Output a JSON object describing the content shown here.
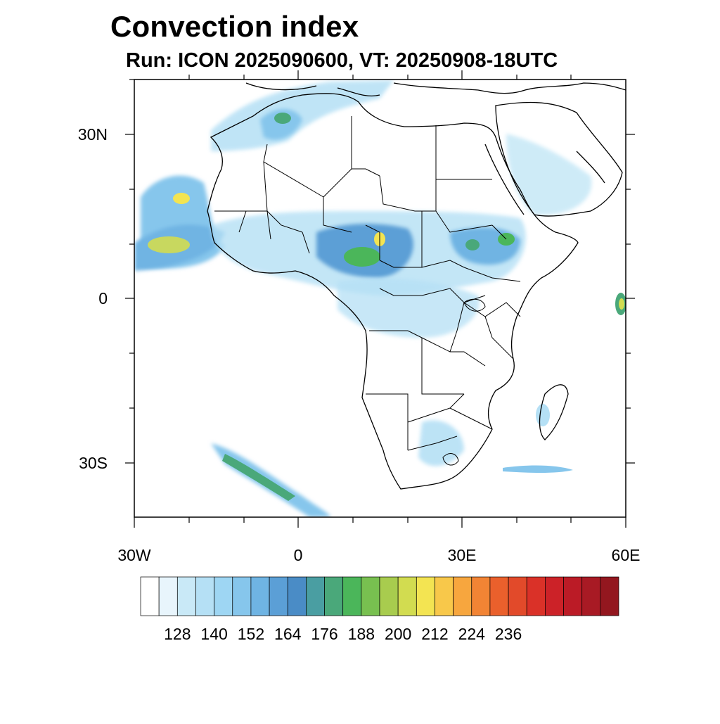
{
  "title": "Convection index",
  "subtitle": "Run: ICON 2025090600,  VT: 20250908-18UTC",
  "axes": {
    "lat_labels": [
      "30N",
      "0",
      "30S"
    ],
    "lon_labels": [
      "30W",
      "0",
      "30E",
      "60E"
    ]
  },
  "colorbar": {
    "labels": [
      "128",
      "140",
      "152",
      "164",
      "176",
      "188",
      "200",
      "212",
      "224",
      "236"
    ],
    "colors": [
      "#ffffff",
      "#e8f5fc",
      "#c9e9f7",
      "#b5e0f5",
      "#9ed6f3",
      "#86c6ec",
      "#6fb4e3",
      "#5b9fd6",
      "#4a8cc6",
      "#4a9ea2",
      "#4aa87a",
      "#4bb65a",
      "#78c050",
      "#a8cc4e",
      "#d2dc50",
      "#f3e452",
      "#f8c84a",
      "#f7a63e",
      "#f28434",
      "#ea602c",
      "#e24a2a",
      "#da3128",
      "#cc2228",
      "#bb1b26",
      "#a81a24",
      "#93171f"
    ]
  }
}
